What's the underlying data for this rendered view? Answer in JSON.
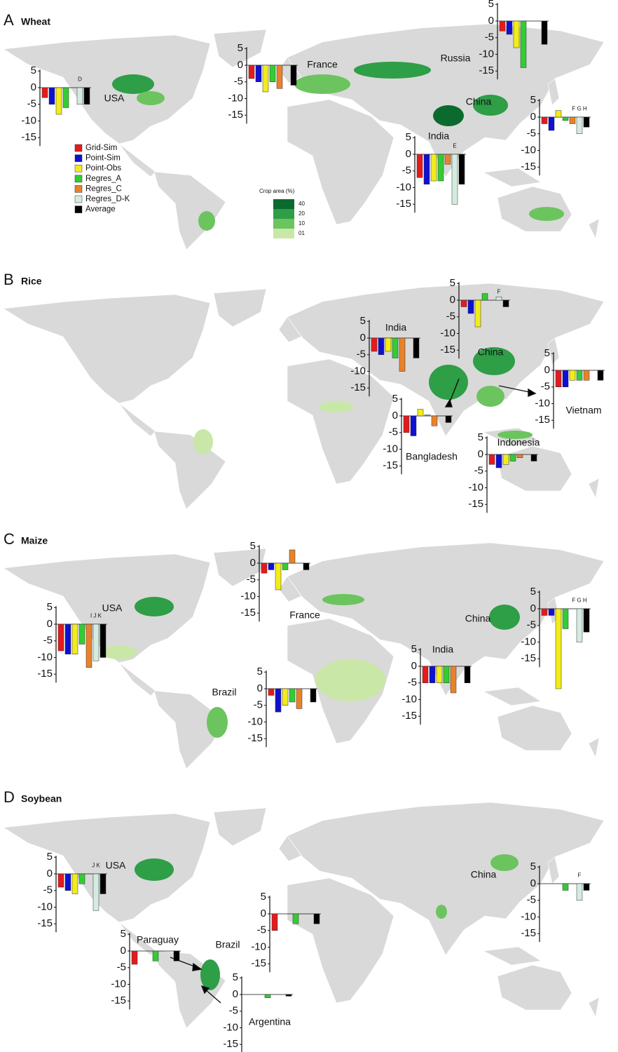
{
  "legend": {
    "series": [
      {
        "name": "Grid-Sim",
        "color": "#e41a1c"
      },
      {
        "name": "Point-Sim",
        "color": "#1010d0"
      },
      {
        "name": "Point-Obs",
        "color": "#f2ec1a"
      },
      {
        "name": "Regres_A",
        "color": "#33cc33"
      },
      {
        "name": "Regres_C",
        "color": "#e8822a"
      },
      {
        "name": "Regres_D-K",
        "color": "#d4ece0"
      },
      {
        "name": "Average",
        "color": "#000000"
      }
    ]
  },
  "crop_area_legend": {
    "title": "Crop area (%)",
    "levels": [
      "40",
      "20",
      "10",
      "01"
    ],
    "colors": [
      "#0b6b2e",
      "#2e9e47",
      "#6cc45f",
      "#c9e7a6"
    ]
  },
  "y_axis": {
    "ylim": [
      -15,
      5
    ],
    "yticks": [
      5,
      0,
      -5,
      -10,
      -15
    ]
  },
  "panels": [
    {
      "label": "A",
      "crop": "Wheat",
      "insets": [
        {
          "country": "USA",
          "values": [
            -3,
            -5,
            -8,
            -6,
            null,
            -5,
            -5
          ],
          "annotation": "D"
        },
        {
          "country": "France",
          "values": [
            -4,
            -5,
            -8,
            -5,
            -7,
            null,
            -6
          ]
        },
        {
          "country": "Russia",
          "values": [
            -3,
            -4,
            -8,
            -14,
            null,
            null,
            -7
          ]
        },
        {
          "country": "China",
          "values": [
            -2,
            -4,
            2,
            -1,
            -2,
            -5,
            -3
          ],
          "annotation": "F G H"
        },
        {
          "country": "India",
          "values": [
            -7,
            -9,
            -8,
            -8,
            -3,
            -15,
            -9
          ],
          "annotation": "E"
        }
      ]
    },
    {
      "label": "B",
      "crop": "Rice",
      "insets": [
        {
          "country": "China",
          "values": [
            -2,
            -4,
            -8,
            2,
            null,
            1,
            -2
          ],
          "annotation": "F"
        },
        {
          "country": "India",
          "values": [
            -4,
            -5,
            -4,
            -6,
            -10,
            null,
            -6
          ]
        },
        {
          "country": "Vietnam",
          "values": [
            -5,
            -5,
            -3,
            -3,
            -3,
            null,
            -3
          ]
        },
        {
          "country": "Bangladesh",
          "values": [
            -5,
            -6,
            2,
            0.3,
            -3,
            null,
            -2
          ]
        },
        {
          "country": "Indonesia",
          "values": [
            -3,
            -4,
            -3,
            -2,
            -1,
            null,
            -2
          ]
        }
      ]
    },
    {
      "label": "C",
      "crop": "Maize",
      "insets": [
        {
          "country": "France",
          "values": [
            -3,
            -2,
            -8,
            -2,
            4,
            null,
            -2
          ]
        },
        {
          "country": "USA",
          "values": [
            -8,
            -9,
            -9,
            -6,
            -13,
            -11,
            -10
          ],
          "annotation": "I J K"
        },
        {
          "country": "China",
          "values": [
            -2,
            -2,
            -24,
            -6,
            null,
            -10,
            -7
          ],
          "annotation": "F G H"
        },
        {
          "country": "India",
          "values": [
            -5,
            -5,
            -5,
            -5,
            -8,
            null,
            -5
          ]
        },
        {
          "country": "Brazil",
          "values": [
            -2,
            -7,
            -5,
            -4,
            -6,
            null,
            -4
          ]
        }
      ]
    },
    {
      "label": "D",
      "crop": "Soybean",
      "insets": [
        {
          "country": "USA",
          "values": [
            -4,
            -5,
            -6,
            -3,
            null,
            -11,
            -6
          ],
          "annotation": "J K"
        },
        {
          "country": "China",
          "values": [
            null,
            null,
            null,
            -2,
            null,
            -5,
            -2
          ],
          "annotation": "F"
        },
        {
          "country": "Brazil",
          "values": [
            -5,
            null,
            null,
            -3,
            null,
            null,
            -3
          ]
        },
        {
          "country": "Paraguay",
          "values": [
            -4,
            null,
            null,
            -3,
            null,
            null,
            -3
          ]
        },
        {
          "country": "Argentina",
          "values": [
            null,
            null,
            null,
            -1,
            null,
            null,
            -0.5
          ]
        }
      ]
    }
  ]
}
